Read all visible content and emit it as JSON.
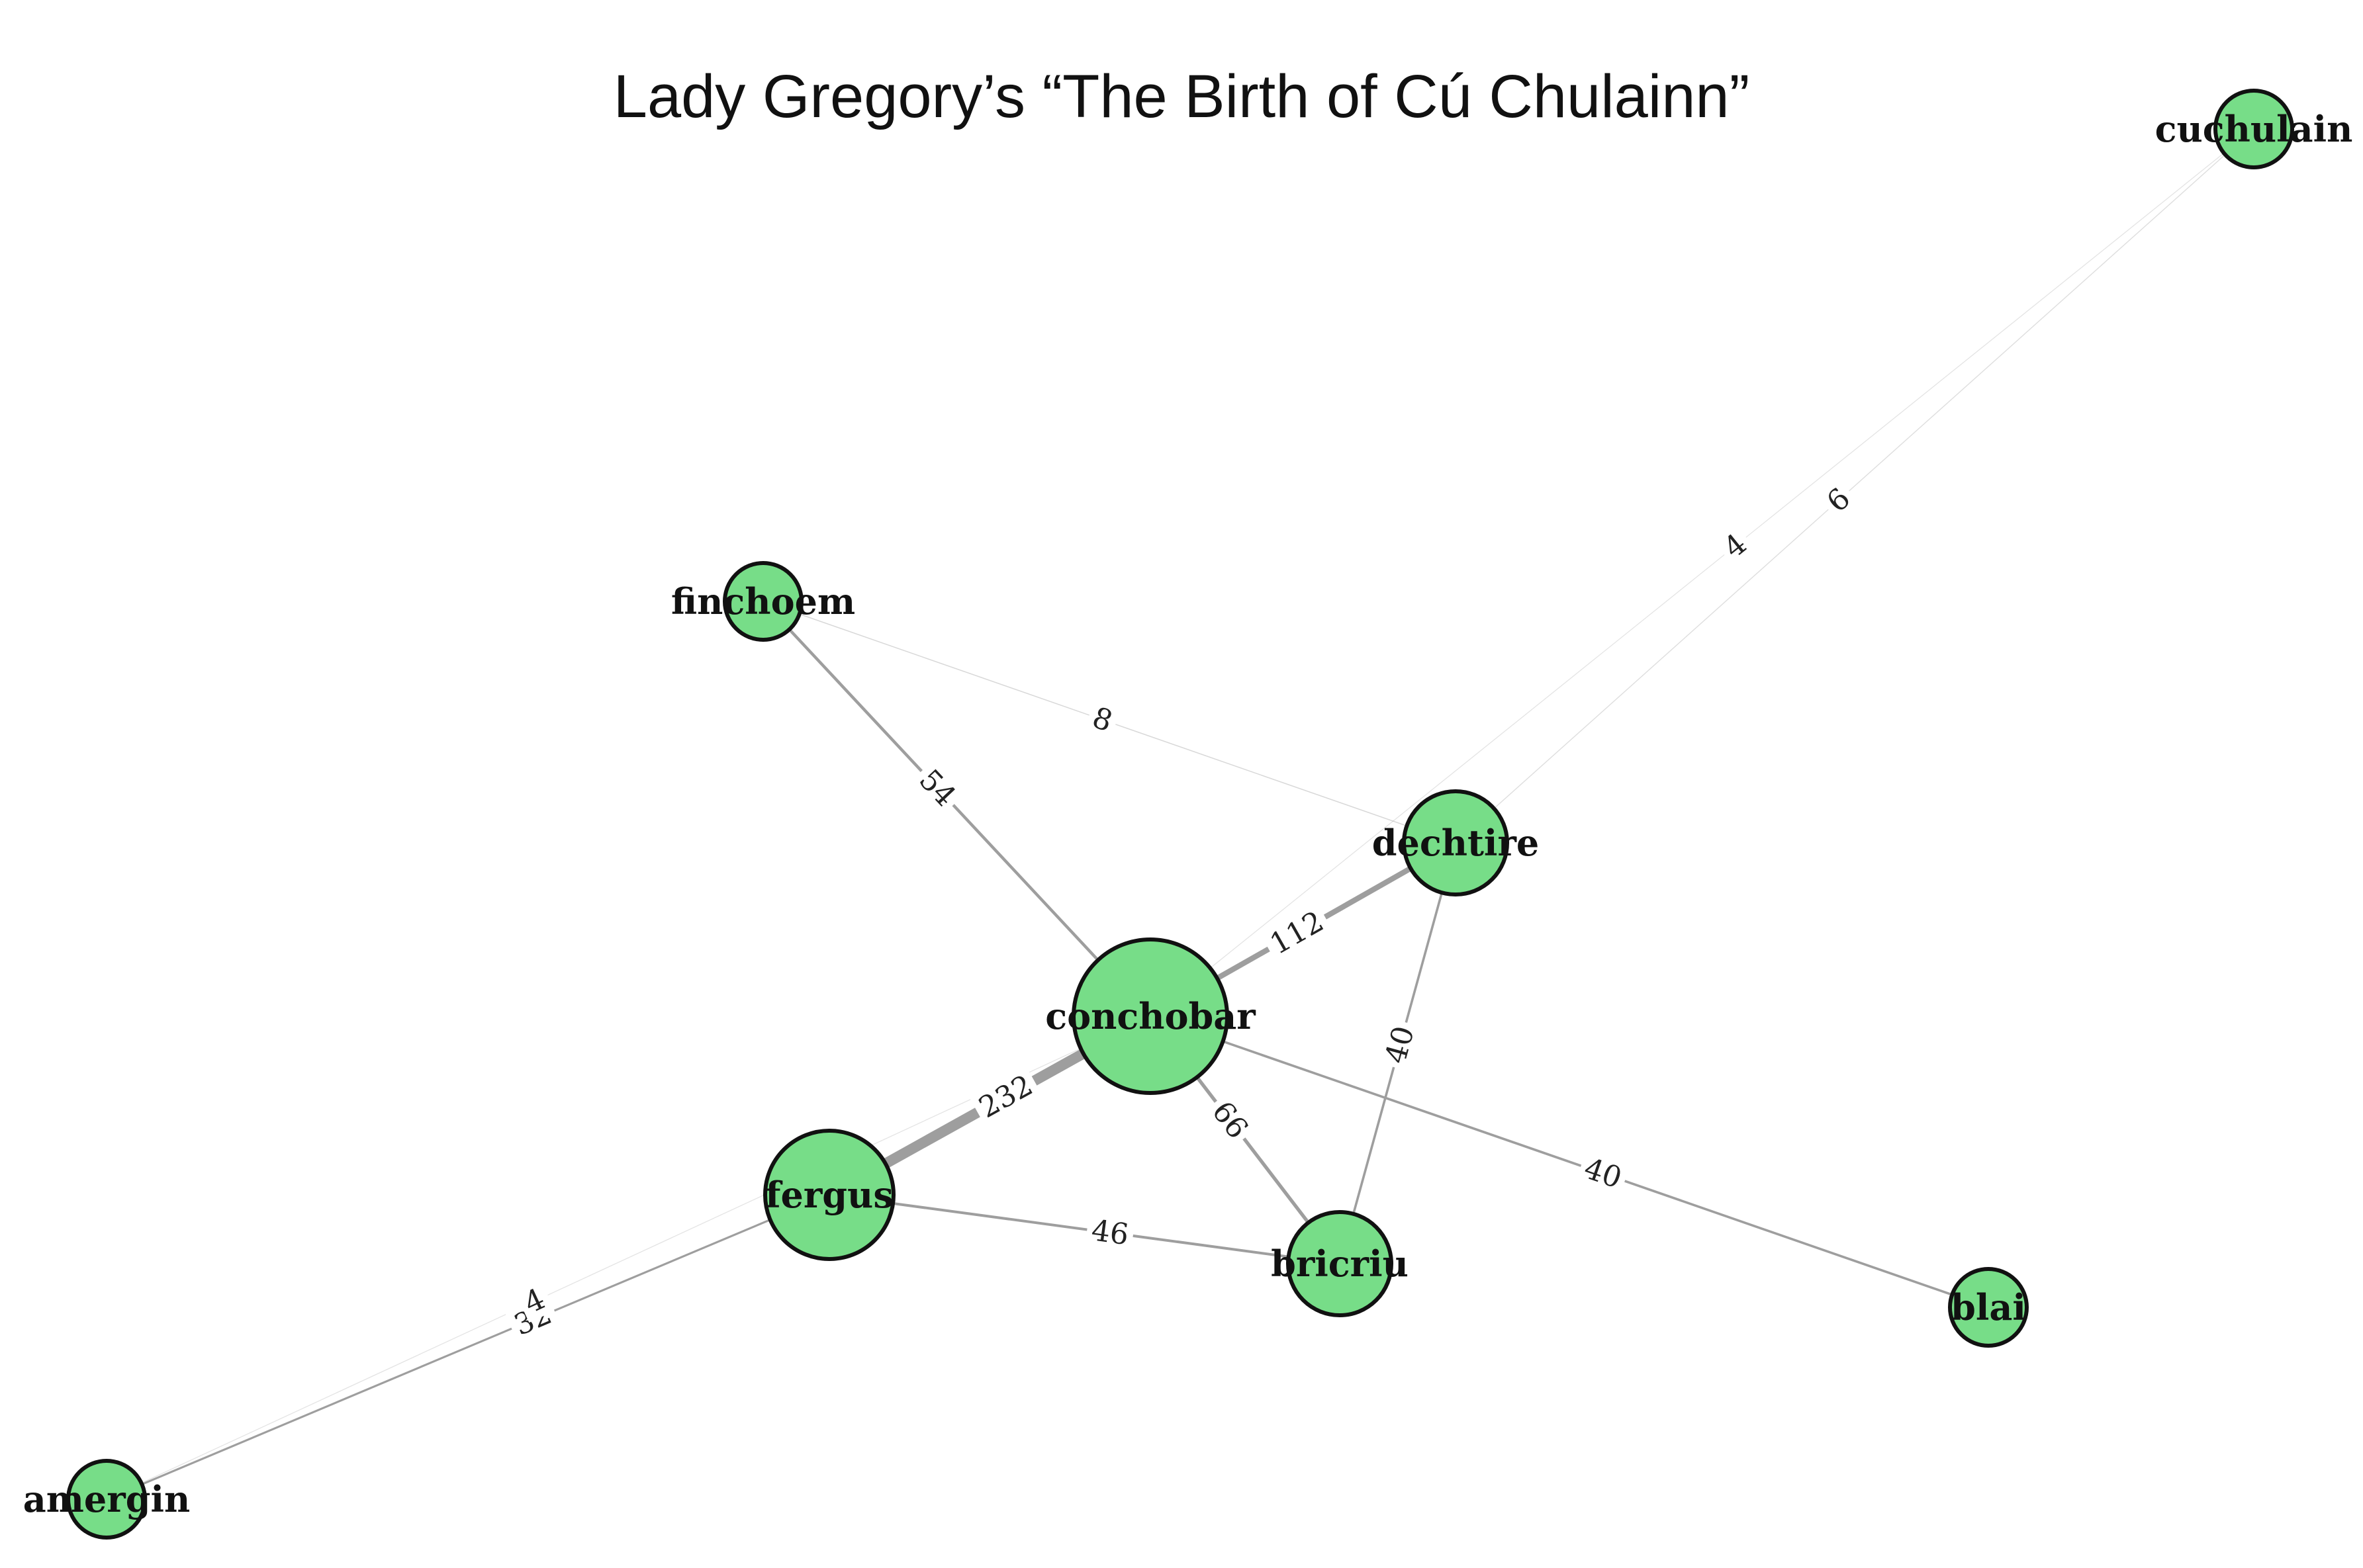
{
  "title": "Lady Gregory’s “The Birth of Cú Chulainn”",
  "colors": {
    "node_fill": "#77dd88",
    "node_stroke": "#111111",
    "edge": "#9e9e9e",
    "edge_label_bg": "#ffffff"
  },
  "graph": {
    "nodes": [
      {
        "id": "conchobar",
        "label": "conchobar",
        "size": 5
      },
      {
        "id": "fergus",
        "label": "fergus",
        "size": 4
      },
      {
        "id": "dechtire",
        "label": "dechtire",
        "size": 3
      },
      {
        "id": "bricriu",
        "label": "bricriu",
        "size": 3
      },
      {
        "id": "finchoem",
        "label": "finchoem",
        "size": 2
      },
      {
        "id": "cuchulain",
        "label": "cuchulain",
        "size": 2
      },
      {
        "id": "blai",
        "label": "blai",
        "size": 2
      },
      {
        "id": "amergin",
        "label": "amergin",
        "size": 2
      }
    ],
    "edges": [
      {
        "source": "conchobar",
        "target": "fergus",
        "weight": 232
      },
      {
        "source": "conchobar",
        "target": "dechtire",
        "weight": 112
      },
      {
        "source": "conchobar",
        "target": "bricriu",
        "weight": 66
      },
      {
        "source": "conchobar",
        "target": "finchoem",
        "weight": 54
      },
      {
        "source": "conchobar",
        "target": "blai",
        "weight": 40
      },
      {
        "source": "dechtire",
        "target": "bricriu",
        "weight": 40
      },
      {
        "source": "fergus",
        "target": "bricriu",
        "weight": 46
      },
      {
        "source": "fergus",
        "target": "amergin",
        "weight": 32
      },
      {
        "source": "finchoem",
        "target": "dechtire",
        "weight": 8
      },
      {
        "source": "dechtire",
        "target": "cuchulain",
        "weight": 6
      },
      {
        "source": "conchobar",
        "target": "cuchulain",
        "weight": 4
      },
      {
        "source": "conchobar",
        "target": "amergin",
        "weight": 4
      }
    ]
  }
}
